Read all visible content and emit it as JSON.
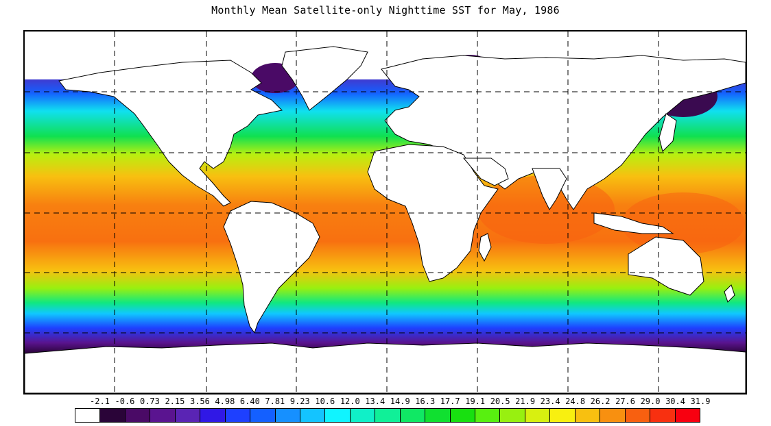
{
  "title": "Monthly Mean Satellite-only Nighttime SST for May, 1986",
  "map": {
    "variable": "Sea surface temperature (nighttime, satellite-only)",
    "land_color": "#ffffff",
    "coastline_color": "#000000",
    "grid_style": "dashed"
  },
  "colorbar": {
    "labels": [
      "-2.1",
      "-0.6",
      "0.73",
      "2.15",
      "3.56",
      "4.98",
      "6.40",
      "7.81",
      "9.23",
      "10.6",
      "12.0",
      "13.4",
      "14.9",
      "16.3",
      "17.7",
      "19.1",
      "20.5",
      "21.9",
      "23.4",
      "24.8",
      "26.2",
      "27.6",
      "29.0",
      "30.4",
      "31.9"
    ],
    "colors": [
      "#ffffff",
      "#2a0438",
      "#4a0a66",
      "#5a1490",
      "#5a24b4",
      "#3018e6",
      "#1e40ff",
      "#1460ff",
      "#1690ff",
      "#14c4ff",
      "#10f4ff",
      "#10f0c8",
      "#10f098",
      "#10e864",
      "#10e030",
      "#18e010",
      "#58f010",
      "#98f010",
      "#d8f010",
      "#f8f010",
      "#f8c010",
      "#f89010",
      "#f86010",
      "#f83010",
      "#f80010"
    ]
  }
}
